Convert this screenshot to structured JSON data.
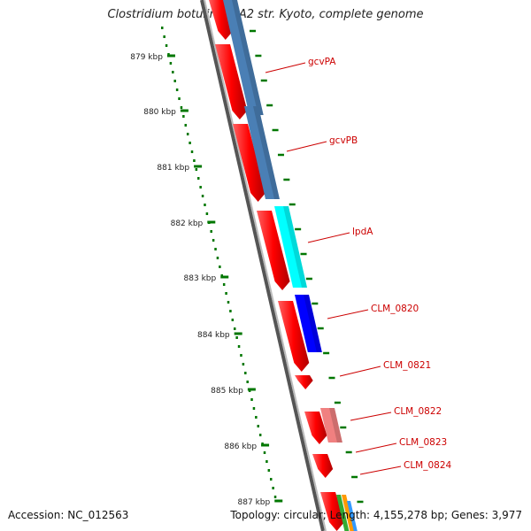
{
  "title": "Clostridium botulinum A2 str. Kyoto, complete genome",
  "footer": {
    "accession": "Accession: NC_012563",
    "topology": "Topology: circular; Length: 4,155,278 bp; Genes: 3,977"
  },
  "ticks": [
    "879 kbp",
    "880 kbp",
    "881 kbp",
    "882 kbp",
    "883 kbp",
    "884 kbp",
    "885 kbp",
    "886 kbp",
    "887 kbp"
  ],
  "genes": [
    {
      "label": "gcvPA",
      "cog_color": "#4a7fb5"
    },
    {
      "label": "gcvPB",
      "cog_color": "#4a7fb5"
    },
    {
      "label": "lpdA",
      "cog_color": "#00ffff"
    },
    {
      "label": "CLM_0820",
      "cog_color": "#0000ff"
    },
    {
      "label": "CLM_0821",
      "cog_color": ""
    },
    {
      "label": "CLM_0822",
      "cog_color": "#f08080"
    },
    {
      "label": "CLM_0823",
      "cog_color": ""
    },
    {
      "label": "CLM_0824",
      "cog_color": ""
    }
  ],
  "colors": {
    "cds": "#ff0000",
    "label": "#cc0000",
    "tick": "#007700",
    "backbone": "#888888"
  }
}
